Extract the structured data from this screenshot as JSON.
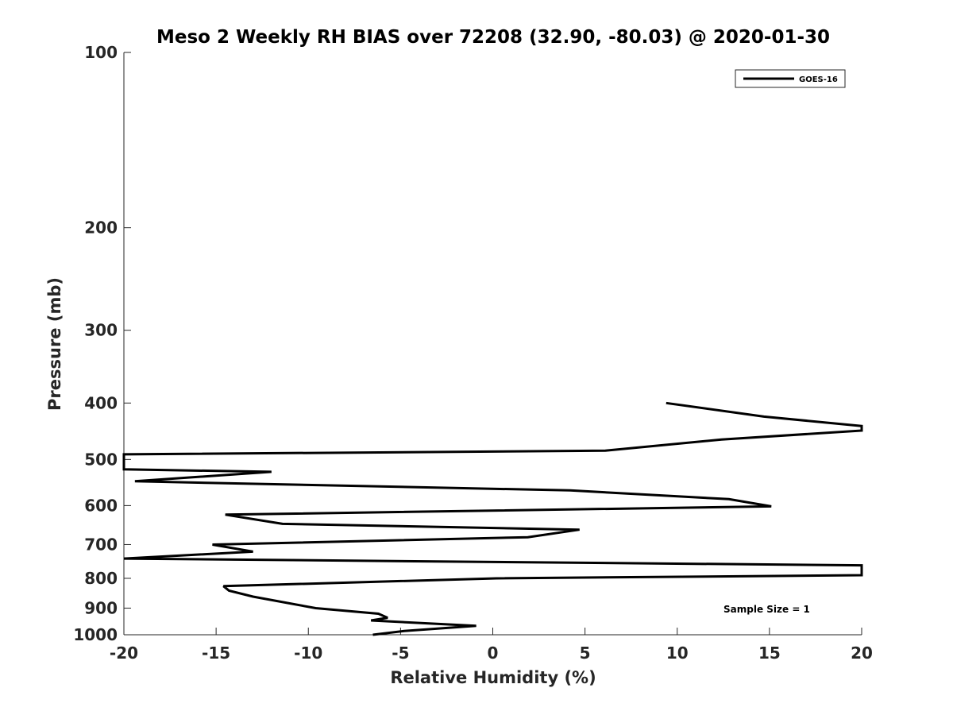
{
  "chart_data": {
    "type": "line",
    "title": "Meso 2 Weekly RH BIAS over 72208 (32.90, -80.03) @ 2020-01-30",
    "xlabel": "Relative Humidity (%)",
    "ylabel": "Pressure (mb)",
    "xlim": [
      -20,
      20
    ],
    "ylim": [
      1000,
      100
    ],
    "y_scale": "log",
    "x_ticks": [
      "-20",
      "-15",
      "-10",
      "-5",
      "0",
      "5",
      "10",
      "15",
      "20"
    ],
    "y_ticks": [
      "100",
      "200",
      "300",
      "400",
      "500",
      "600",
      "700",
      "800",
      "900",
      "1000"
    ],
    "grid": false,
    "legend_position": "top-right",
    "series": [
      {
        "name": "GOES-16",
        "color": "#000000",
        "points": [
          {
            "x": 9.4,
            "p": 400
          },
          {
            "x": 14.7,
            "p": 422
          },
          {
            "x": 20.0,
            "p": 438
          },
          {
            "x": 20.0,
            "p": 446
          },
          {
            "x": 12.4,
            "p": 462
          },
          {
            "x": 6.1,
            "p": 483
          },
          {
            "x": -20.0,
            "p": 490
          },
          {
            "x": -20.0,
            "p": 520
          },
          {
            "x": -12.0,
            "p": 525
          },
          {
            "x": -19.4,
            "p": 545
          },
          {
            "x": 4.2,
            "p": 565
          },
          {
            "x": 12.8,
            "p": 585
          },
          {
            "x": 15.1,
            "p": 602
          },
          {
            "x": -14.5,
            "p": 622
          },
          {
            "x": -11.4,
            "p": 645
          },
          {
            "x": 4.7,
            "p": 660
          },
          {
            "x": 1.9,
            "p": 680
          },
          {
            "x": -15.2,
            "p": 700
          },
          {
            "x": -13.0,
            "p": 720
          },
          {
            "x": -20.0,
            "p": 740
          },
          {
            "x": 20.0,
            "p": 760
          },
          {
            "x": 20.0,
            "p": 790
          },
          {
            "x": 0.2,
            "p": 800
          },
          {
            "x": -14.6,
            "p": 825
          },
          {
            "x": -14.3,
            "p": 840
          },
          {
            "x": -13.0,
            "p": 860
          },
          {
            "x": -9.6,
            "p": 900
          },
          {
            "x": -6.2,
            "p": 920
          },
          {
            "x": -5.7,
            "p": 935
          },
          {
            "x": -6.6,
            "p": 945
          },
          {
            "x": -0.9,
            "p": 965
          },
          {
            "x": -4.8,
            "p": 985
          },
          {
            "x": -6.5,
            "p": 1000
          }
        ]
      }
    ],
    "annotations": [
      {
        "text": "Sample Size = 1",
        "position": "lower-right"
      }
    ]
  }
}
